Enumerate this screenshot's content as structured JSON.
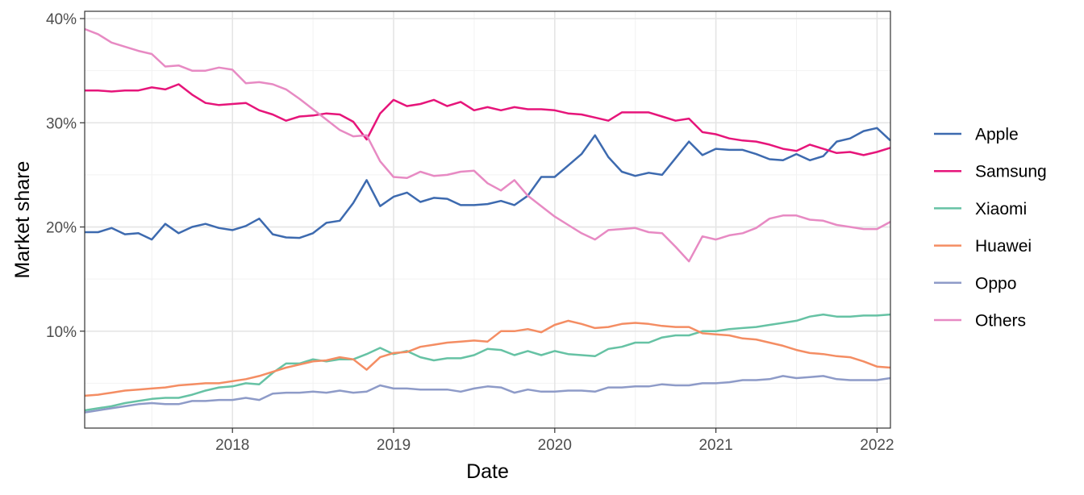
{
  "chart_data": {
    "type": "line",
    "title": "",
    "xlabel": "Date",
    "ylabel": "Market share",
    "xlim": [
      2017.083,
      2022.083
    ],
    "ylim": [
      0.7,
      40.7
    ],
    "x_ticks": [
      2018,
      2019,
      2020,
      2021,
      2022
    ],
    "x_tick_labels": [
      "2018",
      "2019",
      "2020",
      "2021",
      "2022"
    ],
    "y_ticks": [
      10,
      20,
      30,
      40
    ],
    "y_tick_labels": [
      "10%",
      "20%",
      "30%",
      "40%"
    ],
    "grid": true,
    "legend_position": "right",
    "x_start": 2017.083,
    "x_step": 0.08333,
    "series": [
      {
        "name": "Apple",
        "color": "#3d6aaf",
        "values": [
          19.5,
          19.5,
          19.9,
          19.3,
          19.4,
          18.8,
          20.3,
          19.4,
          20.0,
          20.3,
          19.9,
          19.7,
          20.1,
          20.8,
          19.3,
          19.0,
          18.95,
          19.4,
          20.4,
          20.6,
          22.3,
          24.5,
          22.0,
          22.9,
          23.3,
          22.4,
          22.8,
          22.7,
          22.1,
          22.1,
          22.2,
          22.5,
          22.1,
          23.0,
          24.8,
          24.8,
          25.9,
          27.0,
          28.8,
          26.7,
          25.3,
          24.9,
          25.2,
          25.0,
          26.6,
          28.2,
          26.9,
          27.5,
          27.4,
          27.4,
          27.0,
          26.5,
          26.4,
          27.0,
          26.4,
          26.8,
          28.2,
          28.5,
          29.2,
          29.5,
          28.3
        ]
      },
      {
        "name": "Samsung",
        "color": "#e6157a",
        "values": [
          33.1,
          33.1,
          33.0,
          33.1,
          33.1,
          33.4,
          33.2,
          33.7,
          32.7,
          31.9,
          31.7,
          31.8,
          31.9,
          31.2,
          30.8,
          30.2,
          30.6,
          30.7,
          30.9,
          30.8,
          30.1,
          28.4,
          30.9,
          32.2,
          31.6,
          31.8,
          32.2,
          31.6,
          32.0,
          31.2,
          31.5,
          31.2,
          31.5,
          31.3,
          31.3,
          31.2,
          30.9,
          30.8,
          30.5,
          30.2,
          31.0,
          31.0,
          31.0,
          30.6,
          30.2,
          30.4,
          29.1,
          28.9,
          28.5,
          28.3,
          28.2,
          27.9,
          27.5,
          27.3,
          27.9,
          27.5,
          27.1,
          27.2,
          26.9,
          27.2,
          27.6
        ]
      },
      {
        "name": "Xiaomi",
        "color": "#66c2a4",
        "values": [
          2.4,
          2.6,
          2.8,
          3.1,
          3.3,
          3.5,
          3.6,
          3.6,
          3.9,
          4.3,
          4.6,
          4.7,
          5.0,
          4.9,
          6.0,
          6.9,
          6.9,
          7.3,
          7.1,
          7.3,
          7.3,
          7.8,
          8.4,
          7.8,
          8.1,
          7.5,
          7.2,
          7.4,
          7.4,
          7.7,
          8.3,
          8.2,
          7.7,
          8.1,
          7.7,
          8.1,
          7.8,
          7.7,
          7.6,
          8.3,
          8.5,
          8.9,
          8.9,
          9.4,
          9.6,
          9.6,
          10.0,
          10.0,
          10.2,
          10.3,
          10.4,
          10.6,
          10.8,
          11.0,
          11.4,
          11.6,
          11.4,
          11.4,
          11.5,
          11.5,
          11.6
        ]
      },
      {
        "name": "Huawei",
        "color": "#f48d63",
        "values": [
          3.8,
          3.9,
          4.1,
          4.3,
          4.4,
          4.5,
          4.6,
          4.8,
          4.9,
          5.0,
          5.0,
          5.2,
          5.4,
          5.7,
          6.1,
          6.5,
          6.8,
          7.1,
          7.2,
          7.5,
          7.3,
          6.3,
          7.5,
          7.9,
          8.0,
          8.5,
          8.7,
          8.9,
          9.0,
          9.1,
          9.0,
          10.0,
          10.0,
          10.2,
          9.9,
          10.6,
          11.0,
          10.7,
          10.3,
          10.4,
          10.7,
          10.8,
          10.7,
          10.5,
          10.4,
          10.4,
          9.8,
          9.7,
          9.6,
          9.3,
          9.2,
          8.9,
          8.6,
          8.2,
          7.9,
          7.8,
          7.6,
          7.5,
          7.1,
          6.6,
          6.5
        ]
      },
      {
        "name": "Oppo",
        "color": "#8e9bc8",
        "values": [
          2.2,
          2.4,
          2.6,
          2.8,
          3.0,
          3.1,
          3.0,
          3.0,
          3.3,
          3.3,
          3.4,
          3.4,
          3.6,
          3.4,
          4.0,
          4.1,
          4.1,
          4.2,
          4.1,
          4.3,
          4.1,
          4.2,
          4.8,
          4.5,
          4.5,
          4.4,
          4.4,
          4.4,
          4.2,
          4.5,
          4.7,
          4.6,
          4.1,
          4.4,
          4.2,
          4.2,
          4.3,
          4.3,
          4.2,
          4.6,
          4.6,
          4.7,
          4.7,
          4.9,
          4.8,
          4.8,
          5.0,
          5.0,
          5.1,
          5.3,
          5.3,
          5.4,
          5.7,
          5.5,
          5.6,
          5.7,
          5.4,
          5.3,
          5.3,
          5.3,
          5.5
        ]
      },
      {
        "name": "Others",
        "color": "#e78ac3",
        "values": [
          39.0,
          38.5,
          37.7,
          37.3,
          36.9,
          36.6,
          35.4,
          35.5,
          35.0,
          35.0,
          35.3,
          35.1,
          33.8,
          33.9,
          33.7,
          33.2,
          32.3,
          31.3,
          30.3,
          29.3,
          28.7,
          28.8,
          26.3,
          24.8,
          24.7,
          25.3,
          24.9,
          25.0,
          25.3,
          25.4,
          24.2,
          23.5,
          24.5,
          23.0,
          22.0,
          21.0,
          20.2,
          19.4,
          18.8,
          19.7,
          19.8,
          19.9,
          19.5,
          19.4,
          18.1,
          16.7,
          19.1,
          18.8,
          19.2,
          19.4,
          19.9,
          20.8,
          21.1,
          21.1,
          20.7,
          20.6,
          20.2,
          20.0,
          19.8,
          19.8,
          20.5
        ]
      }
    ]
  }
}
